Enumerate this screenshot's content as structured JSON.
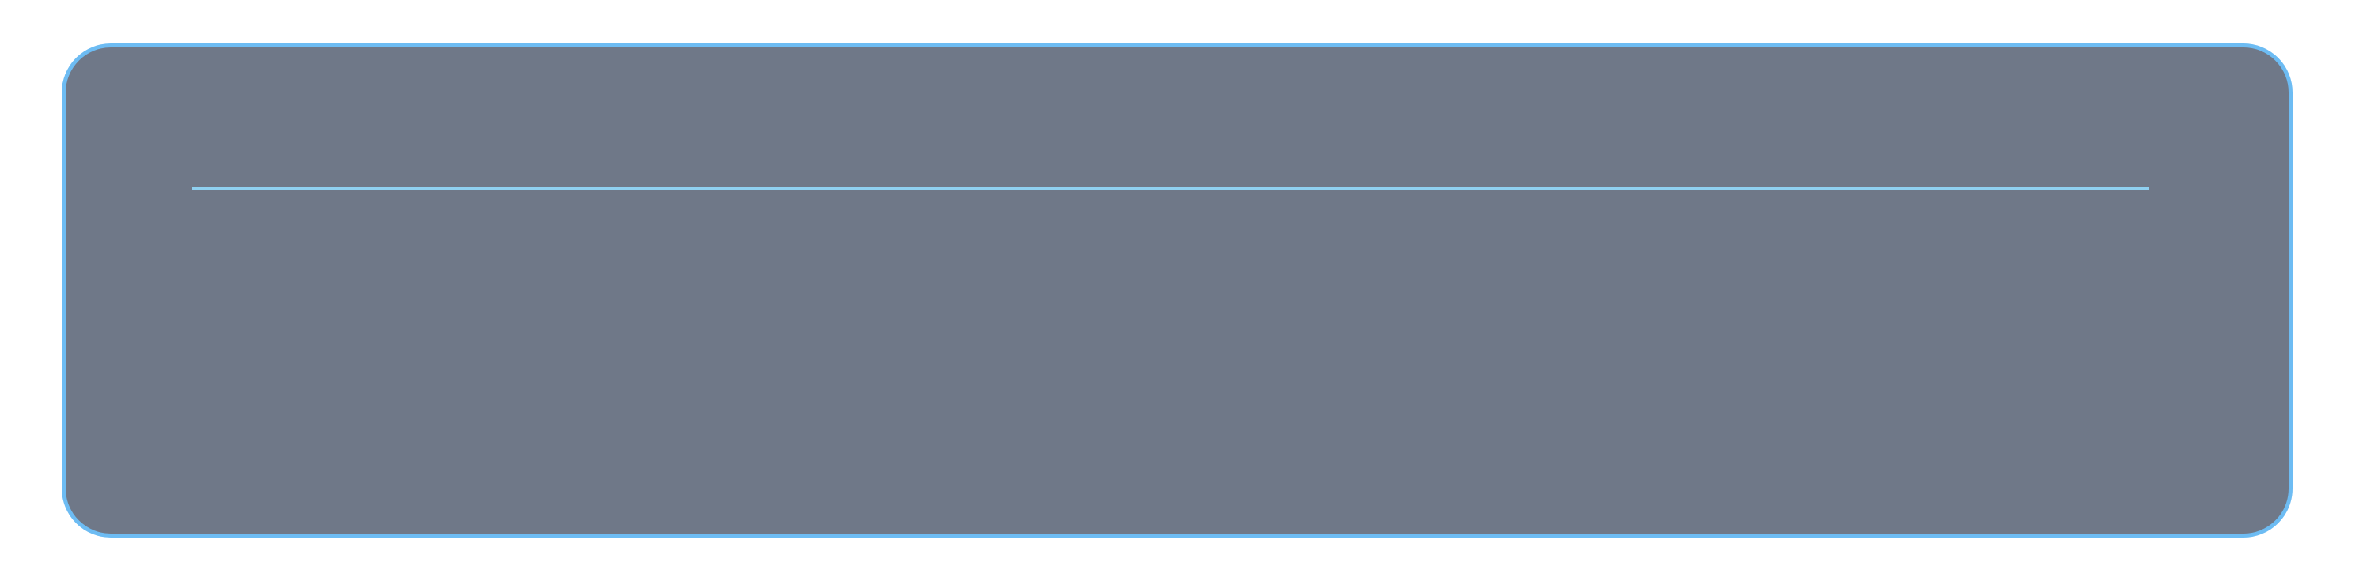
{
  "panel": {
    "background_color": "#6f7888",
    "border_color": "#6dbcf3"
  },
  "divider": {
    "color": "#8fd0f0"
  }
}
